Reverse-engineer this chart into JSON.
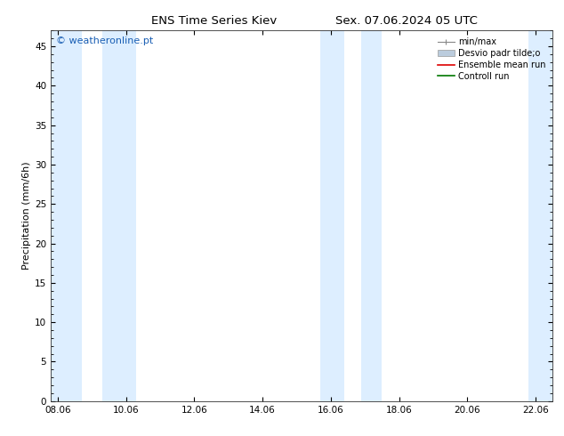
{
  "title_left": "ENS Time Series Kiev",
  "title_right": "Sex. 07.06.2024 05 UTC",
  "ylabel": "Precipitation (mm/6h)",
  "xlabel": "",
  "ylim": [
    0,
    47
  ],
  "yticks": [
    0,
    5,
    10,
    15,
    20,
    25,
    30,
    35,
    40,
    45
  ],
  "xtick_labels": [
    "08.06",
    "10.06",
    "12.06",
    "14.06",
    "16.06",
    "18.06",
    "20.06",
    "22.06"
  ],
  "xtick_positions": [
    0,
    2,
    4,
    6,
    8,
    10,
    12,
    14
  ],
  "xlim": [
    -0.2,
    14.5
  ],
  "watermark": "© weatheronline.pt",
  "watermark_color": "#1a5fb4",
  "bg_color": "#ffffff",
  "shaded_bands": [
    {
      "x_start": -0.2,
      "x_end": 0.7
    },
    {
      "x_start": 1.3,
      "x_end": 2.3
    },
    {
      "x_start": 7.7,
      "x_end": 8.4
    },
    {
      "x_start": 8.9,
      "x_end": 9.5
    },
    {
      "x_start": 13.8,
      "x_end": 14.5
    }
  ],
  "shaded_color": "#ddeeff",
  "legend_labels": [
    "min/max",
    "Desvio padr tilde;o",
    "Ensemble mean run",
    "Controll run"
  ],
  "minmax_color": "#888888",
  "desvio_color": "#bbccdd",
  "ensemble_color": "#dd0000",
  "control_color": "#007700",
  "title_fontsize": 9.5,
  "ylabel_fontsize": 8,
  "tick_fontsize": 7.5,
  "legend_fontsize": 7,
  "watermark_fontsize": 8
}
